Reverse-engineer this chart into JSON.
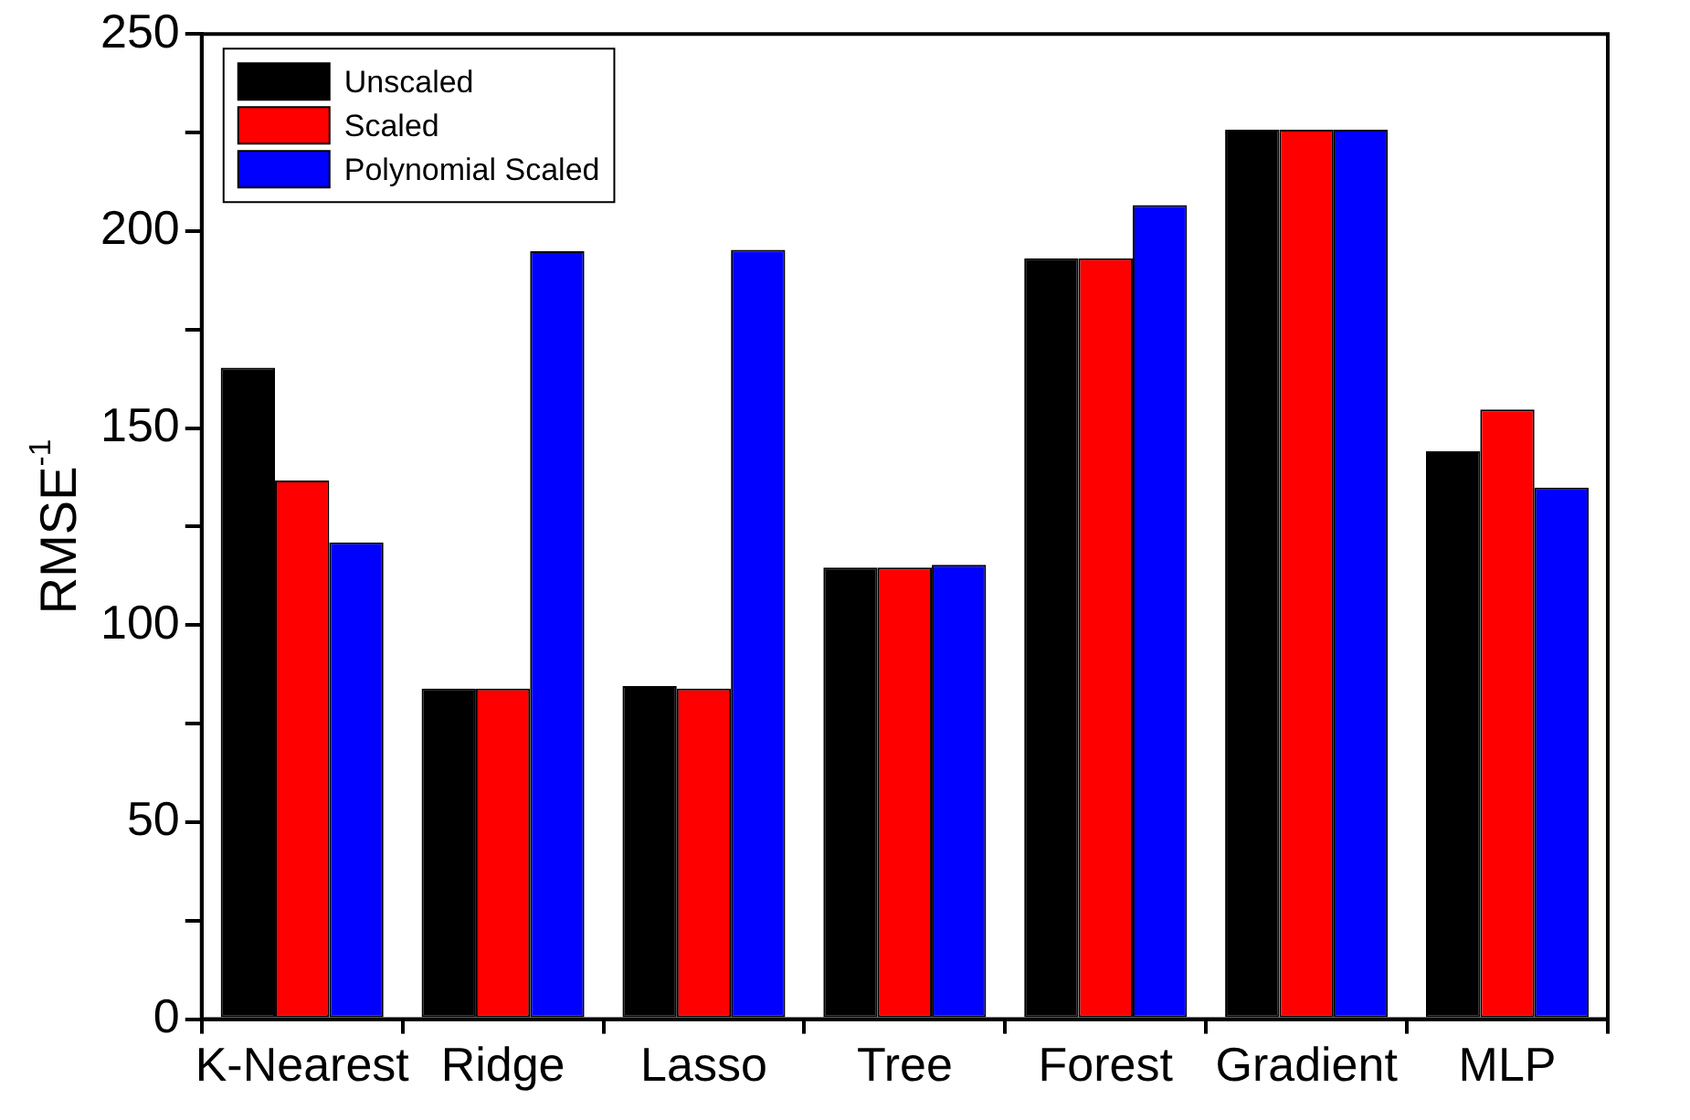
{
  "chart_data": {
    "type": "bar",
    "ylabel": "RMSE$^{-1}$",
    "categories": [
      "K-Nearest",
      "Ridge",
      "Lasso",
      "Tree",
      "Forest",
      "Gradient",
      "MLP"
    ],
    "series": [
      {
        "name": "Unscaled",
        "color": "#000000",
        "values": [
          165.3,
          83.9,
          84.5,
          114.6,
          193.1,
          225.7,
          144.1
        ]
      },
      {
        "name": "Scaled",
        "color": "#ff0000",
        "values": [
          136.7,
          83.9,
          83.9,
          114.6,
          193.1,
          225.7,
          154.7
        ]
      },
      {
        "name": "Polynomial Scaled",
        "color": "#0000ff",
        "values": [
          121,
          194.9,
          195.2,
          115.3,
          206.6,
          225.7,
          134.9
        ]
      }
    ],
    "ylim": [
      0,
      250
    ],
    "yticks": [
      0,
      {
        "value": 25,
        "label": null
      },
      50,
      {
        "value": 75,
        "label": null
      },
      100,
      {
        "value": 125,
        "label": null
      },
      150,
      {
        "value": 175,
        "label": null
      },
      200,
      {
        "value": 225,
        "label": null
      },
      250
    ],
    "grid": false,
    "legend": "top left"
  }
}
